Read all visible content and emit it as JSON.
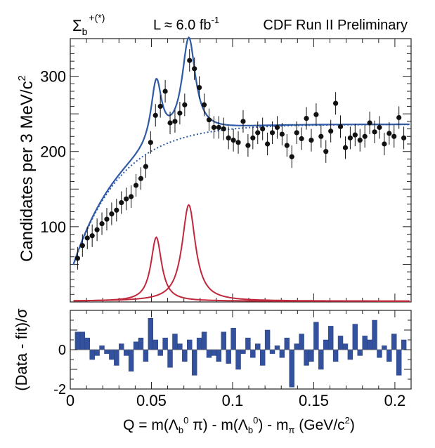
{
  "header": {
    "particle_main": "Σ",
    "particle_sub": "b",
    "particle_sup": "+(*)",
    "luminosity": "L ≈ 6.0 fb",
    "luminosity_sup": "-1",
    "experiment": "CDF Run II Preliminary"
  },
  "colors": {
    "data_points": "#111111",
    "total_fit": "#2f5aa6",
    "background_fit": "#2f5aa6",
    "signal_peaks": "#c0283c",
    "pull_bars": "#34519e",
    "frame": "#222222"
  },
  "chart_data": [
    {
      "type": "scatter",
      "panel": "main",
      "title": "",
      "ylabel": "Candidates per 3 MeV/c",
      "ylabel_sup": "2",
      "xlim": [
        0,
        0.21
      ],
      "ylim": [
        0,
        350
      ],
      "y_ticks": [
        100,
        200,
        300
      ],
      "x": [
        0.0045,
        0.0075,
        0.0105,
        0.0135,
        0.0165,
        0.0195,
        0.0225,
        0.0255,
        0.0285,
        0.0315,
        0.0345,
        0.0375,
        0.0405,
        0.0435,
        0.0465,
        0.0495,
        0.0525,
        0.0555,
        0.0585,
        0.0615,
        0.0645,
        0.0675,
        0.0705,
        0.0735,
        0.0765,
        0.0795,
        0.0825,
        0.0855,
        0.0885,
        0.0915,
        0.0945,
        0.0975,
        0.1005,
        0.1035,
        0.1065,
        0.1095,
        0.1125,
        0.1155,
        0.1185,
        0.1215,
        0.1245,
        0.1275,
        0.1305,
        0.1335,
        0.1365,
        0.1395,
        0.1425,
        0.1455,
        0.1485,
        0.1515,
        0.1545,
        0.1575,
        0.1605,
        0.1635,
        0.1665,
        0.1695,
        0.1725,
        0.1755,
        0.1785,
        0.1815,
        0.1845,
        0.1875,
        0.1905,
        0.1935,
        0.1965,
        0.1995,
        0.2025,
        0.2055
      ],
      "y": [
        58,
        75,
        85,
        88,
        96,
        104,
        110,
        117,
        122,
        132,
        137,
        140,
        155,
        164,
        180,
        212,
        248,
        260,
        280,
        238,
        240,
        251,
        262,
        321,
        310,
        285,
        262,
        242,
        232,
        232,
        230,
        218,
        215,
        212,
        240,
        208,
        218,
        225,
        230,
        210,
        225,
        232,
        223,
        208,
        193,
        225,
        217,
        244,
        215,
        249,
        220,
        200,
        227,
        264,
        233,
        205,
        218,
        222,
        215,
        220,
        238,
        226,
        232,
        210,
        224,
        220,
        245,
        218
      ],
      "errors": 15,
      "curves": [
        {
          "name": "Total fit",
          "style": "solid",
          "color": "#2f5aa6"
        },
        {
          "name": "Background",
          "style": "dotted",
          "color": "#2f5aa6"
        },
        {
          "name": "Σb+ signal",
          "style": "solid",
          "color": "#c0283c",
          "peak_x": 0.053,
          "peak_y": 85,
          "width": 0.004
        },
        {
          "name": "Σb*+ signal",
          "style": "solid",
          "color": "#c0283c",
          "peak_x": 0.073,
          "peak_y": 128,
          "width": 0.005
        }
      ]
    },
    {
      "type": "bar",
      "panel": "pull",
      "ylabel": "(Data - fit)/σ",
      "xlabel": "Q = m(Λb0 π) - m(Λb0) - mπ  (GeV/c2)",
      "xlim": [
        0,
        0.21
      ],
      "ylim": [
        -2,
        2
      ],
      "y_ticks": [
        -2,
        0
      ],
      "x_ticks": [
        0,
        0.05,
        0.1,
        0.15,
        0.2
      ],
      "x_tick_labels": [
        "0",
        "0.05",
        "0.1",
        "0.15",
        "0.2"
      ],
      "values": [
        0.9,
        0.9,
        0.6,
        -0.5,
        -0.3,
        0.2,
        -0.2,
        -0.5,
        -0.8,
        0.3,
        -0.3,
        -1.1,
        0.4,
        0.6,
        -0.6,
        1.6,
        0.5,
        -0.3,
        0.6,
        -0.9,
        0.8,
        0.3,
        -0.6,
        0.5,
        -1.3,
        0.6,
        0.9,
        -0.4,
        -0.3,
        -0.6,
        0.9,
        -0.7,
        1.1,
        -1.0,
        -0.2,
        0.6,
        -0.4,
        0.3,
        -0.8,
        1.0,
        -0.2,
        0.2,
        -0.4,
        0.6,
        -1.9,
        0.3,
        0.8,
        -0.8,
        -0.6,
        1.4,
        -1.0,
        0.5,
        1.2,
        -0.6,
        0.7,
        0.3,
        -0.5,
        1.3,
        -0.3,
        0.7,
        0.5,
        1.5,
        -0.4,
        0.2,
        -0.6,
        0.8,
        -1.3,
        0.5
      ]
    }
  ],
  "axis_text": {
    "xlabel_pre": "Q = m(Λ",
    "xlabel_sub1": "b",
    "xlabel_sup1": "0",
    "xlabel_mid1": " π) - m(Λ",
    "xlabel_sub2": "b",
    "xlabel_sup2": "0",
    "xlabel_mid2": ") - m",
    "xlabel_sub3": "π",
    "xlabel_units": "  (GeV/c",
    "xlabel_units_sup": "2",
    "xlabel_close": ")"
  }
}
